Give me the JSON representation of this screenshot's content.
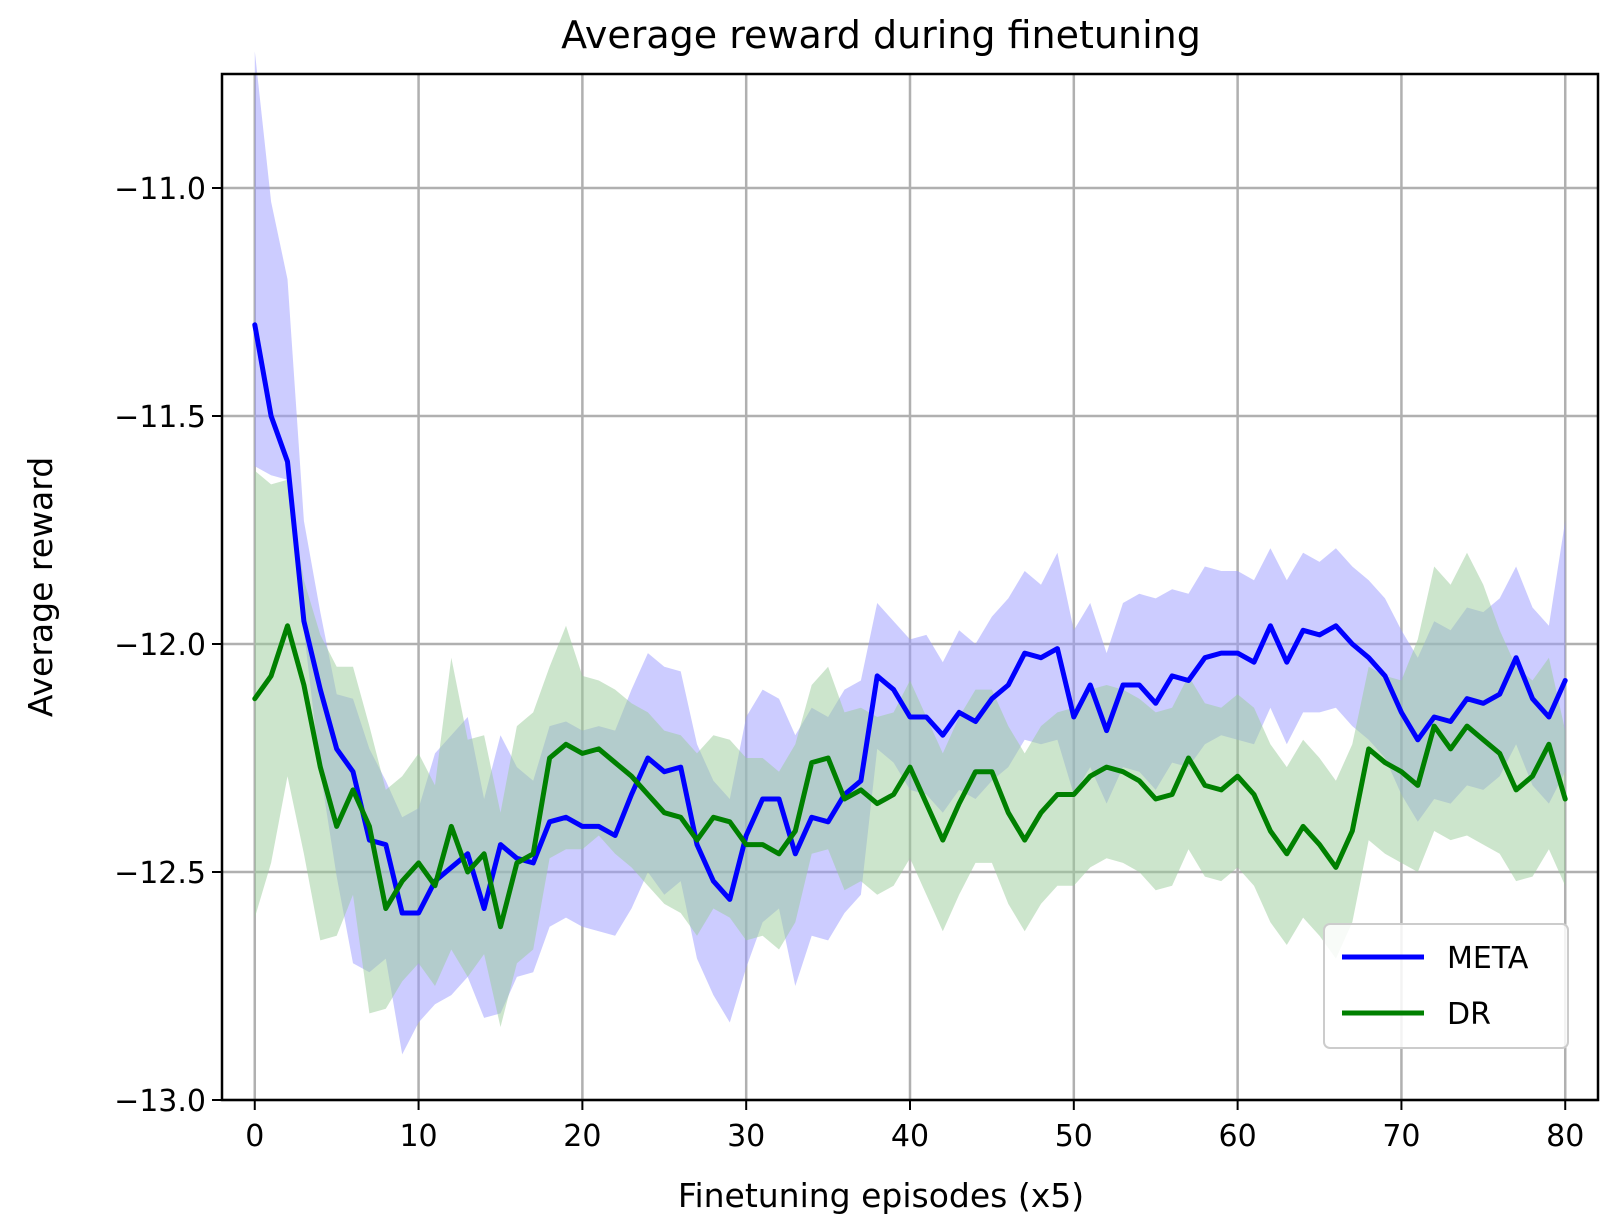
{
  "chart_data": {
    "type": "line",
    "title": "Average reward during finetuning",
    "xlabel": "Finetuning episodes (x5)",
    "ylabel": "Average reward",
    "xlim": [
      -2,
      82
    ],
    "ylim": [
      -13.0,
      -10.75
    ],
    "xticks": [
      0,
      10,
      20,
      30,
      40,
      50,
      60,
      70,
      80
    ],
    "xtick_labels": [
      "0",
      "10",
      "20",
      "30",
      "40",
      "50",
      "60",
      "70",
      "80"
    ],
    "yticks": [
      -13.0,
      -12.5,
      -12.0,
      -11.5,
      -11.0
    ],
    "ytick_labels": [
      "−13.0",
      "−12.5",
      "−12.0",
      "−11.5",
      "−11.0"
    ],
    "grid": true,
    "legend": "lower-right",
    "x": [
      0,
      1,
      2,
      3,
      4,
      5,
      6,
      7,
      8,
      9,
      10,
      11,
      12,
      13,
      14,
      15,
      16,
      17,
      18,
      19,
      20,
      21,
      22,
      23,
      24,
      25,
      26,
      27,
      28,
      29,
      30,
      31,
      32,
      33,
      34,
      35,
      36,
      37,
      38,
      39,
      40,
      41,
      42,
      43,
      44,
      45,
      46,
      47,
      48,
      49,
      50,
      51,
      52,
      53,
      54,
      55,
      56,
      57,
      58,
      59,
      60,
      61,
      62,
      63,
      64,
      65,
      66,
      67,
      68,
      69,
      70,
      71,
      72,
      73,
      74,
      75,
      76,
      77,
      78,
      79,
      80
    ],
    "series": [
      {
        "name": "META",
        "color": "#0000ff",
        "band_color": "#9999ff",
        "values": [
          -11.3,
          -11.5,
          -11.6,
          -11.95,
          -12.1,
          -12.23,
          -12.28,
          -12.43,
          -12.44,
          -12.59,
          -12.59,
          -12.52,
          -12.49,
          -12.46,
          -12.58,
          -12.44,
          -12.47,
          -12.48,
          -12.39,
          -12.38,
          -12.4,
          -12.4,
          -12.42,
          -12.33,
          -12.25,
          -12.28,
          -12.27,
          -12.44,
          -12.52,
          -12.56,
          -12.42,
          -12.34,
          -12.34,
          -12.46,
          -12.38,
          -12.39,
          -12.33,
          -12.3,
          -12.07,
          -12.1,
          -12.16,
          -12.16,
          -12.2,
          -12.15,
          -12.17,
          -12.12,
          -12.09,
          -12.02,
          -12.03,
          -12.01,
          -12.16,
          -12.09,
          -12.19,
          -12.09,
          -12.09,
          -12.13,
          -12.07,
          -12.08,
          -12.03,
          -12.02,
          -12.02,
          -12.04,
          -11.96,
          -12.04,
          -11.97,
          -11.98,
          -11.96,
          -12.0,
          -12.03,
          -12.07,
          -12.15,
          -12.21,
          -12.16,
          -12.17,
          -12.12,
          -12.13,
          -12.11,
          -12.03,
          -12.12,
          -12.16,
          -12.08
        ],
        "upper": [
          -10.7,
          -11.03,
          -11.2,
          -11.73,
          -11.93,
          -12.11,
          -12.12,
          -12.23,
          -12.3,
          -12.38,
          -12.36,
          -12.24,
          -12.2,
          -12.16,
          -12.34,
          -12.2,
          -12.27,
          -12.3,
          -12.18,
          -12.17,
          -12.19,
          -12.18,
          -12.19,
          -12.1,
          -12.02,
          -12.05,
          -12.06,
          -12.22,
          -12.3,
          -12.34,
          -12.16,
          -12.1,
          -12.12,
          -12.2,
          -12.14,
          -12.16,
          -12.1,
          -12.08,
          -11.91,
          -11.95,
          -11.99,
          -11.98,
          -12.04,
          -11.97,
          -12.0,
          -11.94,
          -11.9,
          -11.84,
          -11.87,
          -11.8,
          -11.97,
          -11.91,
          -12.02,
          -11.91,
          -11.89,
          -11.9,
          -11.88,
          -11.89,
          -11.83,
          -11.84,
          -11.84,
          -11.86,
          -11.79,
          -11.86,
          -11.8,
          -11.82,
          -11.79,
          -11.83,
          -11.86,
          -11.9,
          -11.97,
          -12.03,
          -11.95,
          -11.97,
          -11.92,
          -11.93,
          -11.9,
          -11.83,
          -11.92,
          -11.96,
          -11.73
        ],
        "lower": [
          -11.61,
          -11.63,
          -11.64,
          -11.97,
          -12.28,
          -12.51,
          -12.7,
          -12.72,
          -12.69,
          -12.9,
          -12.83,
          -12.79,
          -12.77,
          -12.73,
          -12.82,
          -12.81,
          -12.73,
          -12.72,
          -12.62,
          -12.6,
          -12.62,
          -12.63,
          -12.64,
          -12.58,
          -12.5,
          -12.55,
          -12.52,
          -12.69,
          -12.77,
          -12.83,
          -12.71,
          -12.61,
          -12.58,
          -12.75,
          -12.64,
          -12.65,
          -12.59,
          -12.55,
          -12.23,
          -12.26,
          -12.32,
          -12.33,
          -12.37,
          -12.32,
          -12.34,
          -12.3,
          -12.27,
          -12.21,
          -12.22,
          -12.21,
          -12.33,
          -12.27,
          -12.35,
          -12.27,
          -12.28,
          -12.32,
          -12.26,
          -12.27,
          -12.22,
          -12.2,
          -12.21,
          -12.22,
          -12.14,
          -12.22,
          -12.15,
          -12.15,
          -12.14,
          -12.18,
          -12.21,
          -12.25,
          -12.33,
          -12.39,
          -12.34,
          -12.35,
          -12.31,
          -12.32,
          -12.29,
          -12.22,
          -12.31,
          -12.35,
          -12.28
        ]
      },
      {
        "name": "DR",
        "color": "#008000",
        "band_color": "#99cc99",
        "values": [
          -12.12,
          -12.07,
          -11.96,
          -12.09,
          -12.27,
          -12.4,
          -12.32,
          -12.4,
          -12.58,
          -12.52,
          -12.48,
          -12.53,
          -12.4,
          -12.5,
          -12.46,
          -12.62,
          -12.48,
          -12.46,
          -12.25,
          -12.22,
          -12.24,
          -12.23,
          -12.26,
          -12.29,
          -12.33,
          -12.37,
          -12.38,
          -12.43,
          -12.38,
          -12.39,
          -12.44,
          -12.44,
          -12.46,
          -12.41,
          -12.26,
          -12.25,
          -12.34,
          -12.32,
          -12.35,
          -12.33,
          -12.27,
          -12.35,
          -12.43,
          -12.35,
          -12.28,
          -12.28,
          -12.37,
          -12.43,
          -12.37,
          -12.33,
          -12.33,
          -12.29,
          -12.27,
          -12.28,
          -12.3,
          -12.34,
          -12.33,
          -12.25,
          -12.31,
          -12.32,
          -12.29,
          -12.33,
          -12.41,
          -12.46,
          -12.4,
          -12.44,
          -12.49,
          -12.41,
          -12.23,
          -12.26,
          -12.28,
          -12.31,
          -12.18,
          -12.23,
          -12.18,
          -12.21,
          -12.24,
          -12.32,
          -12.29,
          -12.22,
          -12.34
        ],
        "upper": [
          -11.62,
          -11.65,
          -11.64,
          -11.86,
          -11.98,
          -12.05,
          -12.05,
          -12.18,
          -12.32,
          -12.29,
          -12.24,
          -12.31,
          -12.03,
          -12.21,
          -12.2,
          -12.37,
          -12.18,
          -12.15,
          -12.05,
          -11.96,
          -12.07,
          -12.08,
          -12.1,
          -12.13,
          -12.15,
          -12.19,
          -12.2,
          -12.24,
          -12.2,
          -12.21,
          -12.25,
          -12.25,
          -12.28,
          -12.22,
          -12.09,
          -12.05,
          -12.15,
          -12.14,
          -12.16,
          -12.15,
          -12.08,
          -12.16,
          -12.24,
          -12.16,
          -12.1,
          -12.1,
          -12.18,
          -12.24,
          -12.18,
          -12.15,
          -12.14,
          -12.1,
          -12.09,
          -12.1,
          -12.12,
          -12.15,
          -12.14,
          -12.07,
          -12.13,
          -12.14,
          -12.11,
          -12.14,
          -12.22,
          -12.27,
          -12.21,
          -12.25,
          -12.3,
          -12.22,
          -12.05,
          -12.07,
          -12.08,
          -11.99,
          -11.83,
          -11.87,
          -11.8,
          -11.87,
          -11.97,
          -12.05,
          -12.08,
          -12.03,
          -12.19
        ],
        "lower": [
          -12.6,
          -12.48,
          -12.29,
          -12.46,
          -12.65,
          -12.64,
          -12.55,
          -12.81,
          -12.8,
          -12.74,
          -12.7,
          -12.75,
          -12.67,
          -12.73,
          -12.68,
          -12.84,
          -12.7,
          -12.67,
          -12.47,
          -12.45,
          -12.45,
          -12.42,
          -12.46,
          -12.49,
          -12.53,
          -12.57,
          -12.59,
          -12.64,
          -12.58,
          -12.6,
          -12.65,
          -12.64,
          -12.67,
          -12.61,
          -12.46,
          -12.45,
          -12.54,
          -12.52,
          -12.55,
          -12.53,
          -12.47,
          -12.55,
          -12.63,
          -12.55,
          -12.48,
          -12.48,
          -12.57,
          -12.63,
          -12.57,
          -12.53,
          -12.53,
          -12.49,
          -12.47,
          -12.48,
          -12.5,
          -12.54,
          -12.53,
          -12.45,
          -12.51,
          -12.52,
          -12.49,
          -12.53,
          -12.61,
          -12.66,
          -12.6,
          -12.64,
          -12.69,
          -12.61,
          -12.43,
          -12.46,
          -12.48,
          -12.5,
          -12.41,
          -12.43,
          -12.42,
          -12.44,
          -12.46,
          -12.52,
          -12.51,
          -12.45,
          -12.53
        ]
      }
    ]
  }
}
